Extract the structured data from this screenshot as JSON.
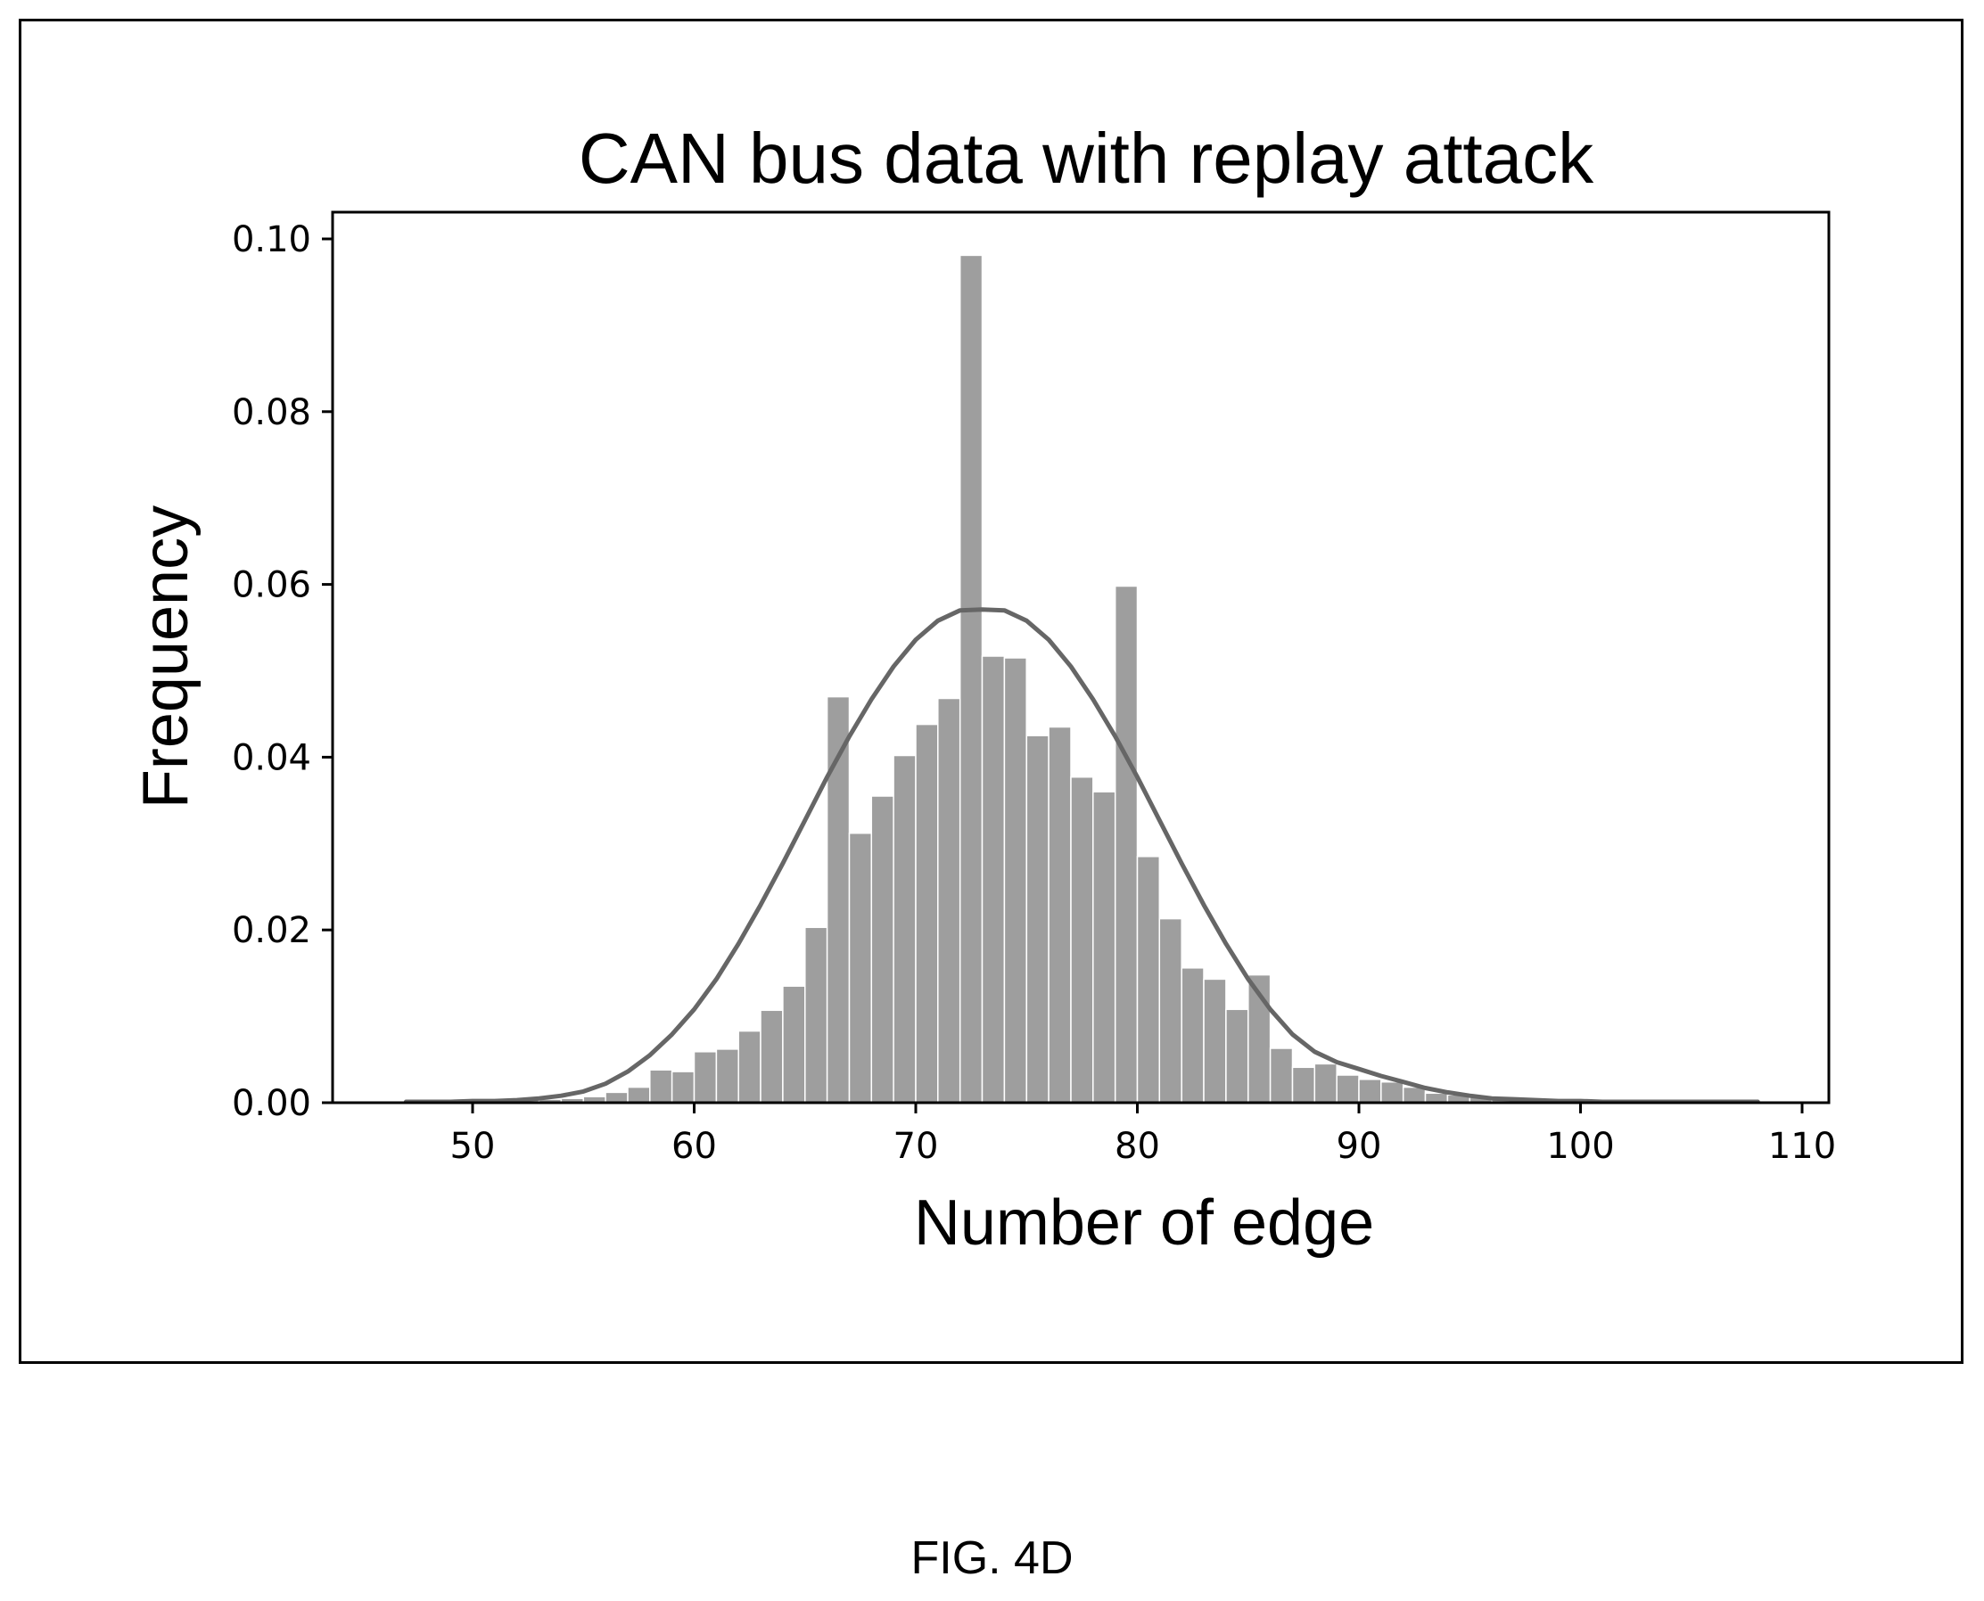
{
  "figure_label": "FIG. 4D",
  "chart_data": {
    "type": "bar",
    "title": "CAN bus data with replay attack",
    "xlabel": "Number of edge",
    "ylabel": "Frequency",
    "xlim": [
      44,
      111
    ],
    "ylim": [
      0,
      0.1
    ],
    "xticks": [
      50,
      60,
      70,
      80,
      90,
      100,
      110
    ],
    "xtick_labels": [
      "50",
      "60",
      "70",
      "80",
      "90",
      "100",
      "110"
    ],
    "yticks": [
      0.0,
      0.02,
      0.04,
      0.06,
      0.08,
      0.1
    ],
    "ytick_labels": [
      "0.00",
      "0.02",
      "0.04",
      "0.06",
      "0.08",
      "0.10"
    ],
    "grid": false,
    "bar_color": "#9e9e9e",
    "curve_color": "#666666",
    "histogram": {
      "bin_width": 1,
      "bin_starts": [
        47,
        48,
        49,
        50,
        51,
        52,
        53,
        54,
        55,
        56,
        57,
        58,
        59,
        60,
        61,
        62,
        63,
        64,
        65,
        66,
        67,
        68,
        69,
        70,
        71,
        72,
        73,
        74,
        75,
        76,
        77,
        78,
        79,
        80,
        81,
        82,
        83,
        84,
        85,
        86,
        87,
        88,
        89,
        90,
        91,
        92,
        93,
        94,
        95,
        96,
        97,
        98,
        99,
        100,
        101,
        102,
        103,
        104,
        105,
        106,
        107
      ],
      "values": [
        0.0003,
        0.0003,
        0.0003,
        0.0003,
        0.0004,
        0.0004,
        0.0004,
        0.0005,
        0.0007,
        0.0012,
        0.0018,
        0.0038,
        0.0036,
        0.0059,
        0.0062,
        0.0083,
        0.0107,
        0.0135,
        0.0203,
        0.047,
        0.0312,
        0.0355,
        0.0402,
        0.0438,
        0.0468,
        0.0981,
        0.0517,
        0.0515,
        0.0425,
        0.0435,
        0.0377,
        0.036,
        0.0598,
        0.0285,
        0.0213,
        0.0156,
        0.0143,
        0.0108,
        0.0148,
        0.0063,
        0.0041,
        0.0045,
        0.0032,
        0.0027,
        0.0024,
        0.0018,
        0.0011,
        0.0009,
        0.0007,
        0.0005,
        0.0005,
        0.0004,
        0.0003,
        0.0003,
        0.0003,
        0.0003,
        0.0003,
        0.0003,
        0.0003,
        0.0003,
        0.0003
      ]
    },
    "kde": {
      "x": [
        47,
        48,
        49,
        50,
        51,
        52,
        53,
        54,
        55,
        56,
        57,
        58,
        59,
        60,
        61,
        62,
        63,
        64,
        65,
        66,
        67,
        68,
        69,
        70,
        71,
        72,
        73,
        74,
        75,
        76,
        77,
        78,
        79,
        80,
        81,
        82,
        83,
        84,
        85,
        86,
        87,
        88,
        89,
        90,
        91,
        92,
        93,
        94,
        95,
        96,
        97,
        98,
        99,
        100,
        101,
        102,
        103,
        104,
        105,
        106,
        107,
        108
      ],
      "y": [
        0.0001,
        0.0001,
        0.0001,
        0.0002,
        0.0002,
        0.0003,
        0.0005,
        0.0008,
        0.0013,
        0.0022,
        0.0036,
        0.0055,
        0.0079,
        0.0108,
        0.0143,
        0.0184,
        0.0229,
        0.0277,
        0.0327,
        0.0377,
        0.0424,
        0.0467,
        0.0505,
        0.0536,
        0.0558,
        0.057,
        0.0571,
        0.057,
        0.0558,
        0.0536,
        0.0505,
        0.0467,
        0.0424,
        0.0377,
        0.0327,
        0.0277,
        0.0229,
        0.0184,
        0.0143,
        0.0108,
        0.0079,
        0.0059,
        0.0047,
        0.0039,
        0.0031,
        0.0024,
        0.0017,
        0.0012,
        0.0008,
        0.0005,
        0.0004,
        0.0003,
        0.0002,
        0.0002,
        0.0001,
        0.0001,
        0.0001,
        0.0001,
        0.0001,
        0.0001,
        0.0001,
        0.0001
      ]
    }
  }
}
